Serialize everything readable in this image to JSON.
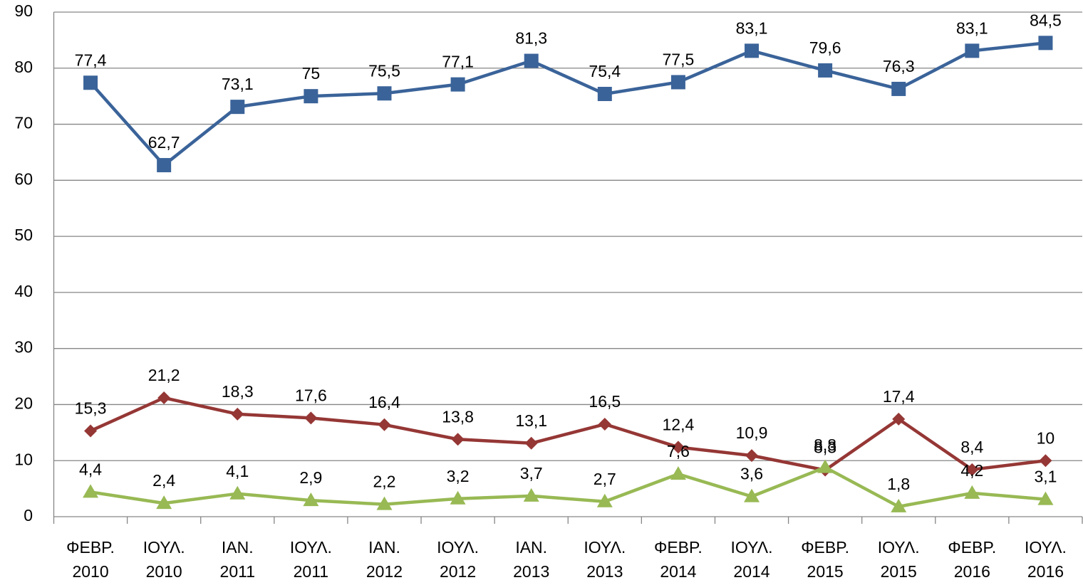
{
  "chart_data": {
    "type": "line",
    "categories": [
      [
        "ΦΕΒΡ.",
        "2010"
      ],
      [
        "ΙΟΥΛ.",
        "2010"
      ],
      [
        "ΙΑΝ.",
        "2011"
      ],
      [
        "ΙΟΥΛ.",
        "2011"
      ],
      [
        "ΙΑΝ.",
        "2012"
      ],
      [
        "ΙΟΥΛ.",
        "2012"
      ],
      [
        "ΙΑΝ.",
        "2013"
      ],
      [
        "ΙΟΥΛ.",
        "2013"
      ],
      [
        "ΦΕΒΡ.",
        "2014"
      ],
      [
        "ΙΟΥΛ.",
        "2014"
      ],
      [
        "ΦΕΒΡ.",
        "2015"
      ],
      [
        "ΙΟΥΛ.",
        "2015"
      ],
      [
        "ΦΕΒΡ.",
        "2016"
      ],
      [
        "ΙΟΥΛ.",
        "2016"
      ]
    ],
    "series": [
      {
        "color": "#3a6399",
        "marker": "square",
        "values": [
          77.4,
          62.7,
          73.1,
          75,
          75.5,
          77.1,
          81.3,
          75.4,
          77.5,
          83.1,
          79.6,
          76.3,
          83.1,
          84.5
        ],
        "value_labels": [
          "77,4",
          "62,7",
          "73,1",
          "75",
          "75,5",
          "77,1",
          "81,3",
          "75,4",
          "77,5",
          "83,1",
          "79,6",
          "76,3",
          "83,1",
          "84,5"
        ]
      },
      {
        "color": "#953735",
        "marker": "diamond",
        "values": [
          15.3,
          21.2,
          18.3,
          17.6,
          16.4,
          13.8,
          13.1,
          16.5,
          12.4,
          10.9,
          8.3,
          17.4,
          8.4,
          10
        ],
        "value_labels": [
          "15,3",
          "21,2",
          "18,3",
          "17,6",
          "16,4",
          "13,8",
          "13,1",
          "16,5",
          "12,4",
          "10,9",
          "8,3",
          "17,4",
          "8,4",
          "10"
        ]
      },
      {
        "color": "#98b954",
        "marker": "triangle",
        "values": [
          4.4,
          2.4,
          4.1,
          2.9,
          2.2,
          3.2,
          3.7,
          2.7,
          7.6,
          3.6,
          8.8,
          1.8,
          4.2,
          3.1
        ],
        "value_labels": [
          "4,4",
          "2,4",
          "4,1",
          "2,9",
          "2,2",
          "3,2",
          "3,7",
          "2,7",
          "7,6",
          "3,6",
          "8,8",
          "1,8",
          "4,2",
          "3,1"
        ]
      }
    ],
    "ylim": [
      0,
      90
    ],
    "yticks": [
      0,
      10,
      20,
      30,
      40,
      50,
      60,
      70,
      80,
      90
    ],
    "grid": true
  }
}
